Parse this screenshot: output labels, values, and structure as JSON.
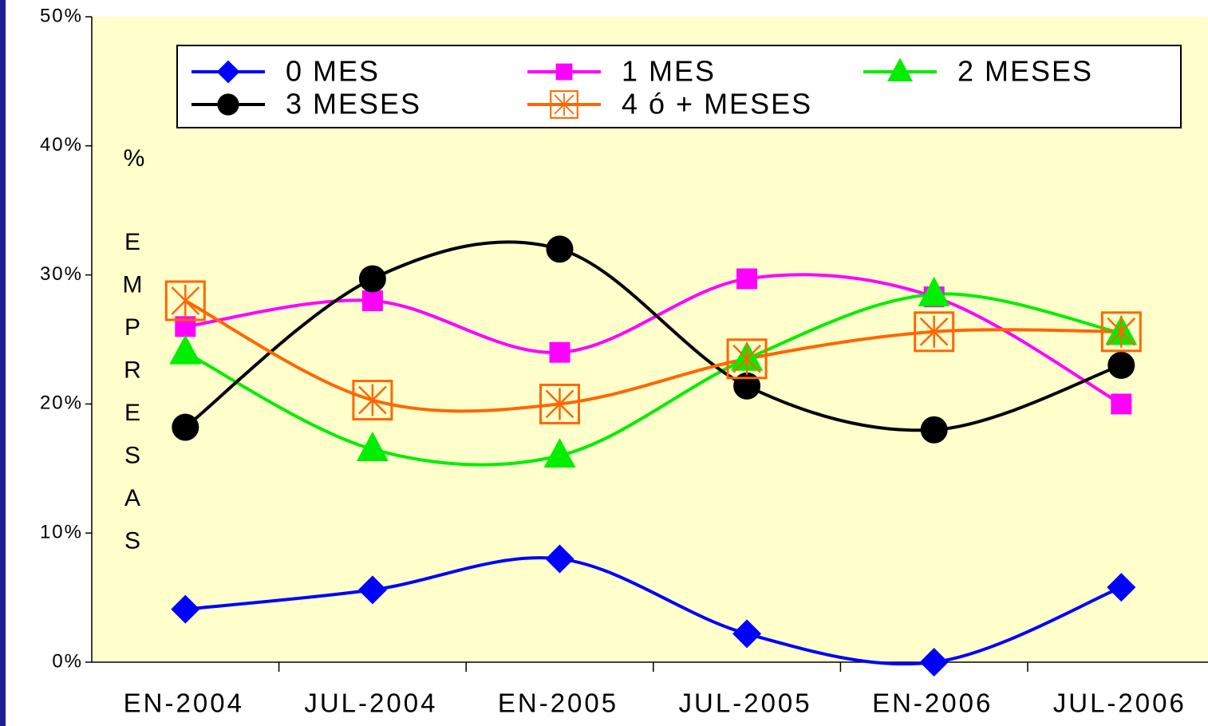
{
  "chart_data": {
    "type": "line",
    "ylabel_unit": "%",
    "ylabel": "EMPRESAS",
    "categories": [
      "EN-2004",
      "JUL-2004",
      "EN-2005",
      "JUL-2005",
      "EN-2006",
      "JUL-2006"
    ],
    "series": [
      {
        "name": "0 MES",
        "color": "#0000ff",
        "marker": "diamond",
        "values": [
          4.1,
          5.6,
          8.0,
          2.2,
          0,
          5.8
        ]
      },
      {
        "name": "1 MES",
        "color": "#ff00ff",
        "marker": "square",
        "values": [
          26,
          28,
          24,
          29.7,
          28.3,
          20
        ]
      },
      {
        "name": "2 MESES",
        "color": "#00ee00",
        "marker": "triangle",
        "values": [
          24,
          16.5,
          16,
          23.5,
          28.5,
          25.5
        ]
      },
      {
        "name": "3 MESES",
        "color": "#000000",
        "marker": "circle",
        "values": [
          18.2,
          29.7,
          32,
          21.4,
          18,
          23
        ]
      },
      {
        "name": "4 ó + MESES",
        "color": "#ff6600",
        "marker": "boxstar",
        "values": [
          28,
          20.3,
          20,
          23.5,
          25.6,
          25.6
        ]
      }
    ],
    "ylim": [
      0,
      50
    ],
    "yticks": [
      {
        "value": 0,
        "label": "0%"
      },
      {
        "value": 10,
        "label": "10%"
      },
      {
        "value": 20,
        "label": "20%"
      },
      {
        "value": 30,
        "label": "30%"
      },
      {
        "value": 40,
        "label": "40%"
      },
      {
        "value": 50,
        "label": "50%"
      }
    ],
    "smooth": true,
    "background": "#ffffcc"
  }
}
